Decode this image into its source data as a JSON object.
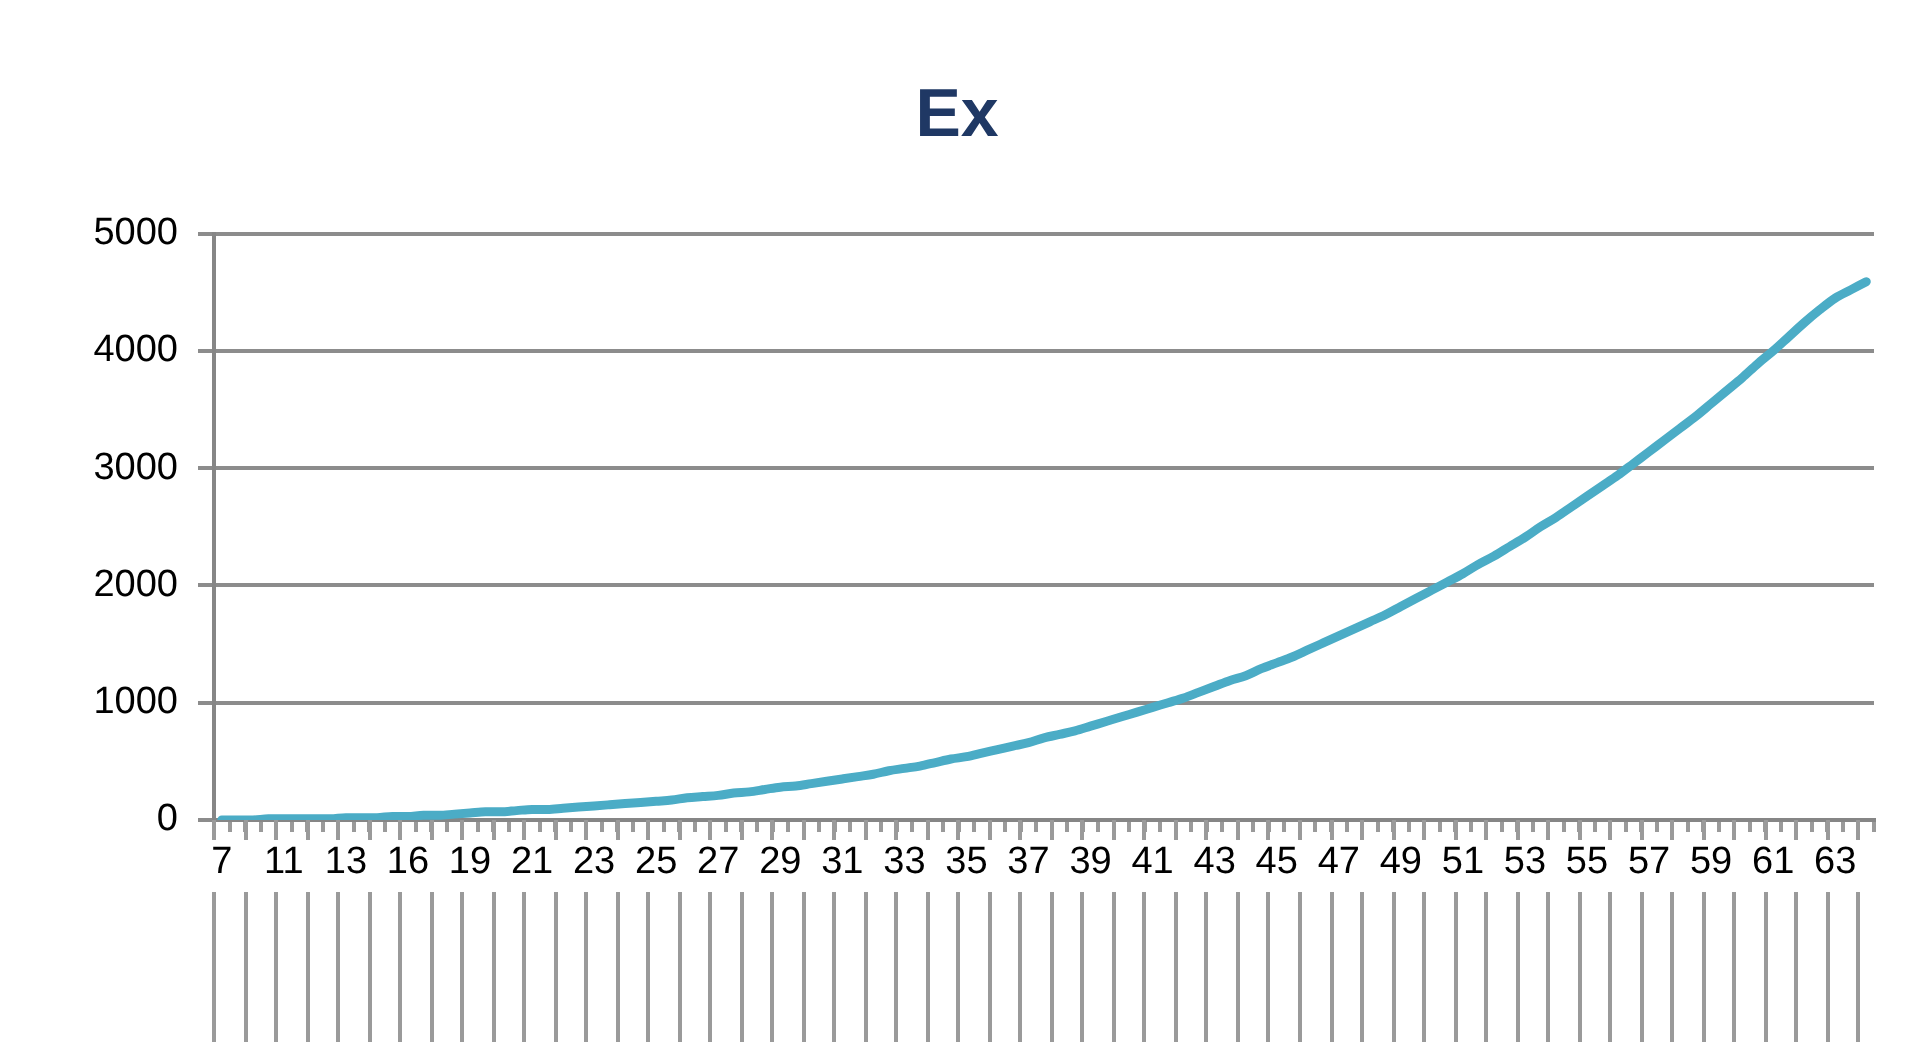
{
  "chart_data": {
    "type": "line",
    "title": "Ex",
    "categories": [
      "7",
      null,
      null,
      null,
      "11",
      null,
      null,
      null,
      "13",
      null,
      null,
      null,
      "16",
      null,
      null,
      null,
      "19",
      null,
      null,
      null,
      "21",
      null,
      null,
      null,
      "23",
      null,
      null,
      null,
      "25",
      null,
      null,
      null,
      "27",
      null,
      null,
      null,
      "29",
      null,
      null,
      null,
      "31",
      null,
      null,
      null,
      "33",
      null,
      null,
      null,
      "35",
      null,
      null,
      null,
      "37",
      null,
      null,
      null,
      "39",
      null,
      null,
      null,
      "41",
      null,
      null,
      null,
      "43",
      null,
      null,
      null,
      "45",
      null,
      null,
      null,
      "47",
      null,
      null,
      null,
      "49",
      null,
      null,
      null,
      "51",
      null,
      null,
      null,
      "53",
      null,
      null,
      null,
      "55",
      null,
      null,
      null,
      "57",
      null,
      null,
      null,
      "59",
      null,
      null,
      null,
      "61",
      null,
      null,
      null,
      "63",
      null,
      null
    ],
    "series": [
      {
        "color": "#4bacc6",
        "values": [
          0,
          0,
          0,
          10,
          10,
          10,
          10,
          10,
          20,
          20,
          20,
          30,
          30,
          40,
          40,
          50,
          60,
          70,
          70,
          80,
          90,
          90,
          100,
          110,
          120,
          130,
          140,
          150,
          160,
          170,
          190,
          200,
          210,
          230,
          240,
          260,
          280,
          290,
          310,
          330,
          350,
          370,
          390,
          420,
          440,
          460,
          490,
          520,
          540,
          570,
          600,
          630,
          660,
          700,
          730,
          760,
          800,
          840,
          880,
          920,
          960,
          1000,
          1040,
          1090,
          1140,
          1190,
          1230,
          1290,
          1340,
          1390,
          1450,
          1510,
          1570,
          1630,
          1690,
          1750,
          1820,
          1890,
          1960,
          2030,
          2100,
          2180,
          2250,
          2330,
          2410,
          2500,
          2580,
          2670,
          2760,
          2850,
          2940,
          3040,
          3140,
          3240,
          3340,
          3440,
          3550,
          3660,
          3770,
          3890,
          4000,
          4120,
          4240,
          4350,
          4450,
          4520,
          4590
        ]
      }
    ],
    "ylim": [
      0,
      5000
    ],
    "yticks": [
      0,
      1000,
      2000,
      3000,
      4000,
      5000
    ],
    "grid": "y",
    "legend": false,
    "marker": "none",
    "line_style": "solid"
  }
}
